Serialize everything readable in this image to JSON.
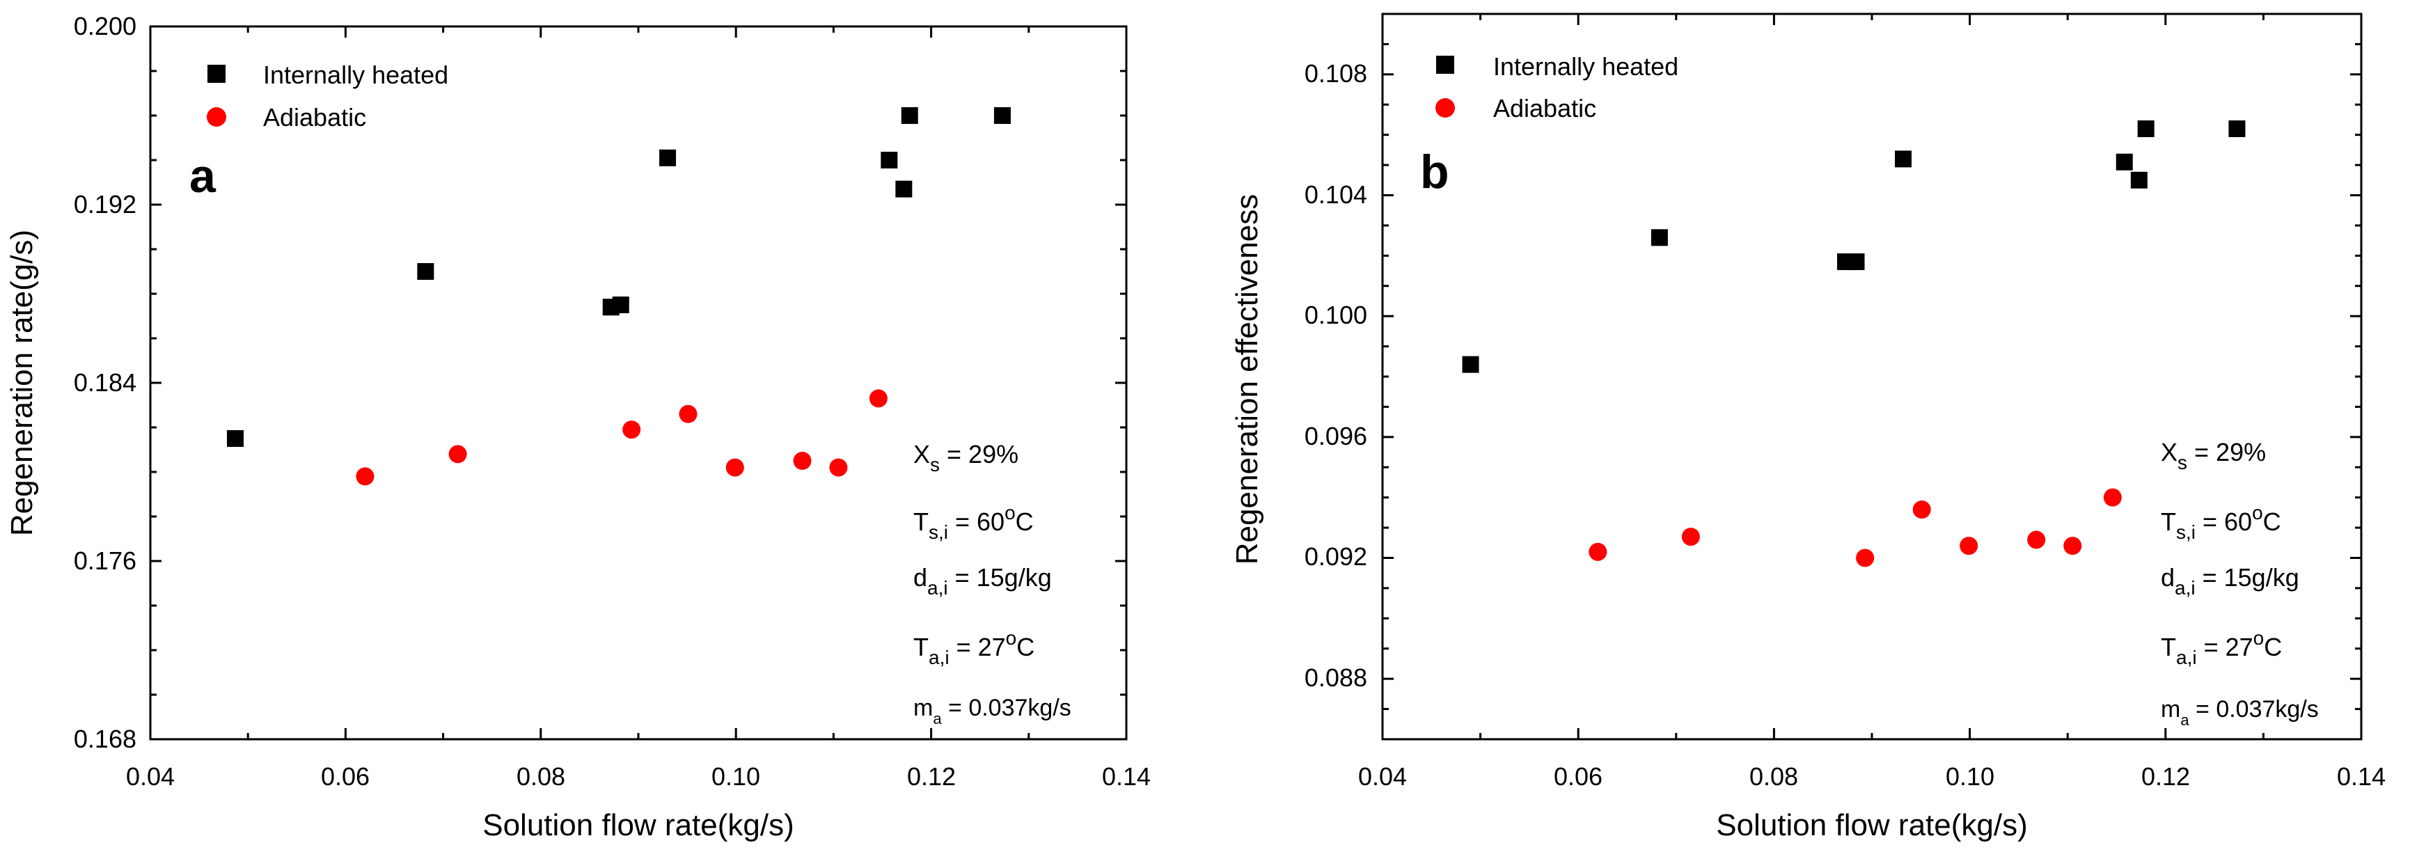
{
  "colors": {
    "internally_heated": "#000000",
    "adiabatic": "#ff0000",
    "axis": "#000000",
    "background": "#ffffff"
  },
  "chart_data": [
    {
      "type": "scatter",
      "panel_label": "a",
      "xlabel": "Solution flow rate(kg/s)",
      "ylabel": "Regeneration rate(g/s)",
      "xlim": [
        0.04,
        0.14
      ],
      "ylim": [
        0.168,
        0.2
      ],
      "xticks": [
        "0.04",
        "0.06",
        "0.08",
        "0.10",
        "0.12",
        "0.14"
      ],
      "yticks": [
        "0.168",
        "0.176",
        "0.184",
        "0.192",
        "0.200"
      ],
      "legend": {
        "placement": "top-left",
        "entries": [
          "Internally heated",
          "Adiabatic"
        ]
      },
      "series": [
        {
          "name": "Internally heated",
          "marker": "square",
          "color": "#000000",
          "points": [
            [
              0.0487,
              0.1815
            ],
            [
              0.0682,
              0.189
            ],
            [
              0.0872,
              0.1874
            ],
            [
              0.0882,
              0.1875
            ],
            [
              0.093,
              0.1941
            ],
            [
              0.1157,
              0.194
            ],
            [
              0.1172,
              0.1927
            ],
            [
              0.1178,
              0.196
            ],
            [
              0.1273,
              0.196
            ]
          ]
        },
        {
          "name": "Adiabatic",
          "marker": "circle",
          "color": "#ff0000",
          "points": [
            [
              0.062,
              0.1798
            ],
            [
              0.0715,
              0.1808
            ],
            [
              0.0893,
              0.1819
            ],
            [
              0.0951,
              0.1826
            ],
            [
              0.0999,
              0.1802
            ],
            [
              0.1068,
              0.1805
            ],
            [
              0.1105,
              0.1802
            ],
            [
              0.1146,
              0.1833
            ]
          ]
        }
      ],
      "annotation": {
        "xs": {
          "main": "X",
          "sub": "s",
          "rest": " = 29%"
        },
        "tsi": {
          "main": "T",
          "sub": "s,i",
          "mid": " = 60",
          "sup": "o",
          "rest": "C"
        },
        "dai": {
          "main": "d",
          "sub": "a,i",
          "rest": " = 15g/kg"
        },
        "tai": {
          "main": "T",
          "sub": "a,i",
          "mid": " = 27",
          "sup": "o",
          "rest": "C"
        },
        "ma": {
          "main": "m",
          "sub": "a",
          "rest": " = 0.037kg/s"
        }
      }
    },
    {
      "type": "scatter",
      "panel_label": "b",
      "xlabel": "Solution flow rate(kg/s)",
      "ylabel": "Regeneration effectiveness",
      "xlim": [
        0.04,
        0.14
      ],
      "ylim": [
        0.086,
        0.11
      ],
      "xticks": [
        "0.04",
        "0.06",
        "0.08",
        "0.10",
        "0.12",
        "0.14"
      ],
      "yticks": [
        "0.088",
        "0.092",
        "0.096",
        "0.100",
        "0.104",
        "0.108"
      ],
      "legend": {
        "placement": "top-left",
        "entries": [
          "Internally heated",
          "Adiabatic"
        ]
      },
      "series": [
        {
          "name": "Internally heated",
          "marker": "square",
          "color": "#000000",
          "points": [
            [
              0.049,
              0.0984
            ],
            [
              0.0683,
              0.1026
            ],
            [
              0.0873,
              0.1018
            ],
            [
              0.0884,
              0.1018
            ],
            [
              0.0932,
              0.1052
            ],
            [
              0.1158,
              0.1051
            ],
            [
              0.1173,
              0.1045
            ],
            [
              0.118,
              0.1062
            ],
            [
              0.1273,
              0.1062
            ]
          ]
        },
        {
          "name": "Adiabatic",
          "marker": "circle",
          "color": "#ff0000",
          "points": [
            [
              0.062,
              0.0922
            ],
            [
              0.0715,
              0.0927
            ],
            [
              0.0893,
              0.092
            ],
            [
              0.0951,
              0.0936
            ],
            [
              0.0999,
              0.0924
            ],
            [
              0.1068,
              0.0926
            ],
            [
              0.1105,
              0.0924
            ],
            [
              0.1146,
              0.094
            ]
          ]
        }
      ],
      "annotation": {
        "xs": {
          "main": "X",
          "sub": "s",
          "rest": " = 29%"
        },
        "tsi": {
          "main": "T",
          "sub": "s,i",
          "mid": " = 60",
          "sup": "o",
          "rest": "C"
        },
        "dai": {
          "main": "d",
          "sub": "a,i",
          "rest": " = 15g/kg"
        },
        "tai": {
          "main": "T",
          "sub": "a,i",
          "mid": " = 27",
          "sup": "o",
          "rest": "C"
        },
        "ma": {
          "main": "m",
          "sub": "a",
          "rest": " = 0.037kg/s"
        }
      }
    }
  ]
}
